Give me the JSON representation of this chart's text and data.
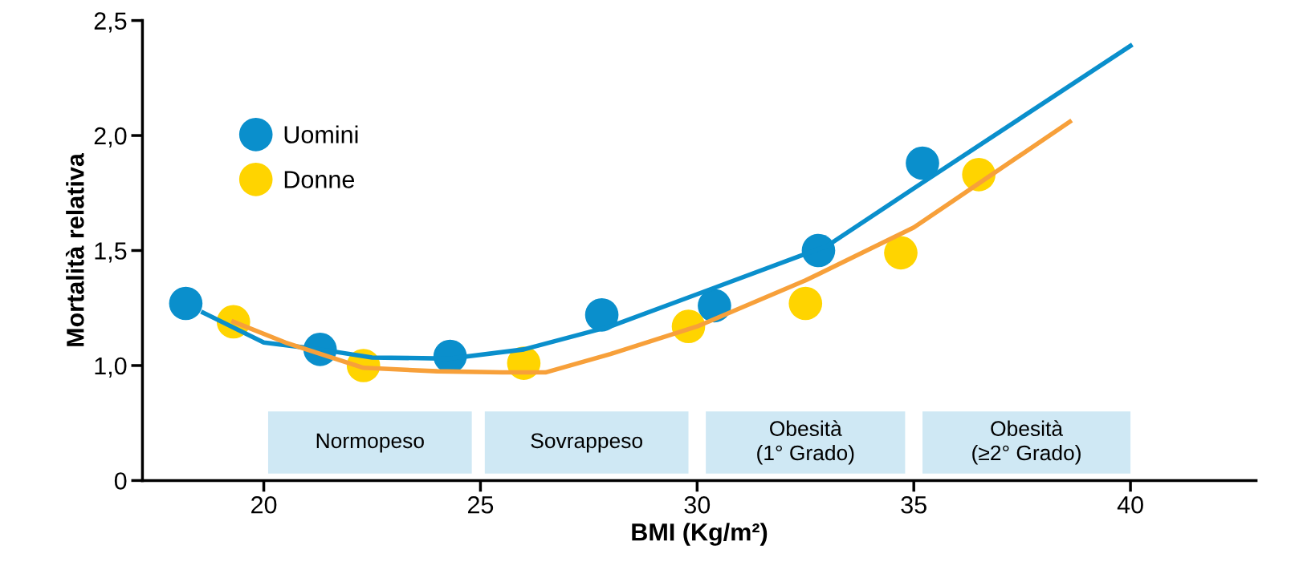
{
  "chart_data": {
    "type": "line",
    "xlabel": "BMI (Kg/m²)",
    "ylabel": "Mortalità relativa",
    "xlim": [
      17.2,
      42.9
    ],
    "xticks": [
      20,
      25,
      30,
      35,
      40
    ],
    "ylim": [
      0.5,
      2.5
    ],
    "yticks": [
      {
        "value": 0.5,
        "label": "0"
      },
      {
        "value": 1.0,
        "label": "1,0"
      },
      {
        "value": 1.5,
        "label": "1,5"
      },
      {
        "value": 2.0,
        "label": "2,0"
      },
      {
        "value": 2.5,
        "label": "2,5"
      }
    ],
    "grid": false,
    "legend": "top left",
    "series": [
      {
        "color": "#0a8fcc",
        "x": [
          18.6,
          20,
          21.3,
          22.5,
          24.3,
          26,
          28,
          30,
          33,
          35,
          40
        ],
        "values": [
          1.23,
          1.1,
          1.07,
          1.035,
          1.03,
          1.07,
          1.17,
          1.31,
          1.52,
          1.77,
          2.39
        ]
      },
      {
        "color": "#f7a03a",
        "x": [
          19.3,
          20.5,
          22.3,
          24,
          25.5,
          26.5,
          28,
          30,
          32.5,
          35,
          38.6
        ],
        "values": [
          1.19,
          1.1,
          0.99,
          0.975,
          0.97,
          0.97,
          1.05,
          1.17,
          1.37,
          1.6,
          2.06
        ]
      },
      {
        "type": "scatter",
        "name": "Uomini",
        "color": "#0a8fcc",
        "marker": "circle",
        "x": [
          18.2,
          21.3,
          24.3,
          27.8,
          30.4,
          32.8,
          35.2
        ],
        "values": [
          1.27,
          1.07,
          1.04,
          1.22,
          1.26,
          1.5,
          1.88
        ]
      },
      {
        "type": "scatter",
        "name": "Donne",
        "color": "#ffd400",
        "marker": "circle",
        "x": [
          19.3,
          22.3,
          26.0,
          29.8,
          32.5,
          34.7,
          36.5
        ],
        "values": [
          1.19,
          1.0,
          1.01,
          1.17,
          1.27,
          1.49,
          1.83
        ]
      }
    ],
    "bands": [
      {
        "axis": "x",
        "from": 20.1,
        "to": 24.8,
        "label": "Normopeso",
        "color": "#cfe8f4"
      },
      {
        "axis": "x",
        "from": 25.1,
        "to": 29.8,
        "label": "Sovrappeso",
        "color": "#cfe8f4"
      },
      {
        "axis": "x",
        "from": 30.2,
        "to": 34.8,
        "label": "Obesità\n(1° Grado)",
        "color": "#cfe8f4"
      },
      {
        "axis": "x",
        "from": 35.2,
        "to": 40.0,
        "label": "Obesità\n(≥2° Grado)",
        "color": "#cfe8f4"
      }
    ]
  }
}
